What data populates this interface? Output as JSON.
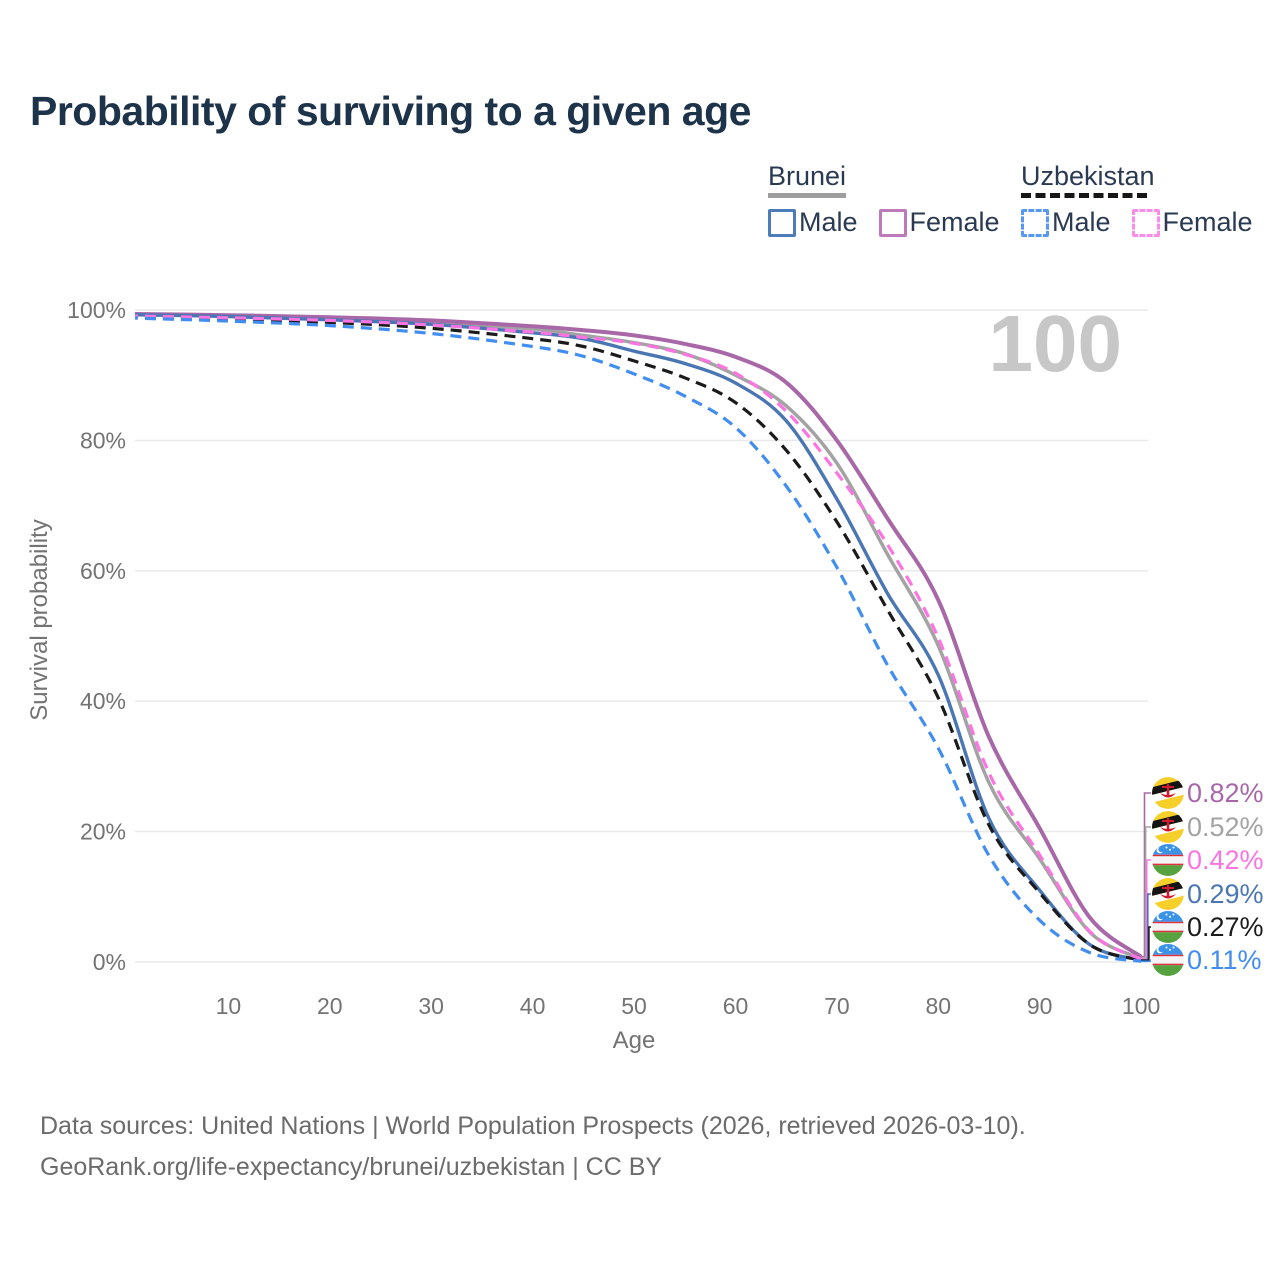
{
  "title": "Probability of surviving to a given age",
  "watermark_age": "100",
  "legend": {
    "groups": [
      {
        "name": "Brunei",
        "line_style": "solid",
        "rule_color": "#9e9e9e",
        "items": [
          {
            "label": "Male",
            "color": "#4d7cbb"
          },
          {
            "label": "Female",
            "color": "#bd7aba"
          }
        ]
      },
      {
        "name": "Uzbekistan",
        "line_style": "dashed",
        "rule_color": "#161616",
        "items": [
          {
            "label": "Male",
            "color": "#5698f4"
          },
          {
            "label": "Female",
            "color": "#fb8ce9"
          }
        ]
      }
    ]
  },
  "footer": {
    "line1": "Data sources: United Nations | World Population Prospects (2026, retrieved 2026-03-10).",
    "line2": "GeoRank.org/life-expectancy/brunei/uzbekistan | CC BY"
  },
  "colors": {
    "title": "#1d3349",
    "axis_text": "#737373",
    "gridline": "#e8e8e8",
    "watermark": "#c7c7c7",
    "flags": {
      "brunei": {
        "yellow": "#f7cf2a",
        "white": "#ffffff",
        "black": "#141414",
        "red": "#cf1b2b"
      },
      "uzbekistan": {
        "blue": "#3b93e8",
        "white": "#f4f4f4",
        "green": "#55a23f",
        "red": "#e0303a"
      }
    }
  },
  "chart_data": {
    "type": "line",
    "title": "Probability of surviving to a given age",
    "xlabel": "Age",
    "ylabel": "Survival probability",
    "xlim": [
      0,
      100
    ],
    "ylim_pct": [
      0,
      100
    ],
    "x_ticks": [
      10,
      20,
      30,
      40,
      50,
      60,
      70,
      80,
      90,
      100
    ],
    "y_ticks_pct": [
      0,
      20,
      40,
      60,
      80,
      100
    ],
    "grid": "horizontal",
    "ages": [
      0,
      10,
      20,
      30,
      40,
      45,
      50,
      55,
      60,
      65,
      70,
      75,
      80,
      85,
      90,
      95,
      100
    ],
    "series": [
      {
        "name": "Brunei Female",
        "country": "brunei",
        "sex": "Female",
        "style": "solid",
        "color": "#a868a8",
        "width": 4,
        "end_label": "0.82%",
        "values": [
          99.4,
          99.2,
          98.9,
          98.4,
          97.5,
          96.9,
          96.1,
          94.8,
          92.8,
          88.9,
          80.0,
          68.0,
          55.5,
          34.5,
          20.5,
          6.7,
          0.82
        ]
      },
      {
        "name": "Brunei",
        "country": "brunei",
        "sex": "All",
        "style": "solid",
        "color": "#a3a3a3",
        "width": 3.5,
        "end_label": "0.52%",
        "values": [
          99.3,
          99.1,
          98.7,
          98.1,
          97.1,
          96.1,
          95.0,
          93.3,
          90.0,
          85.3,
          76.5,
          62.5,
          48.5,
          27.5,
          15.8,
          4.5,
          0.52
        ]
      },
      {
        "name": "Brunei Male",
        "country": "brunei",
        "sex": "Male",
        "style": "solid",
        "color": "#4a77b4",
        "width": 3.4,
        "end_label": "0.29%",
        "values": [
          99.3,
          99.0,
          98.5,
          97.8,
          96.5,
          95.6,
          93.7,
          91.8,
          88.8,
          83.0,
          71.0,
          56.5,
          44.0,
          22.0,
          11.0,
          2.6,
          0.29
        ]
      },
      {
        "name": "Uzbekistan Female",
        "country": "uzbekistan",
        "sex": "Female",
        "style": "dashed",
        "color": "#fb74e1",
        "width": 3.2,
        "end_label": "0.42%",
        "values": [
          99.1,
          98.8,
          98.4,
          97.7,
          96.6,
          95.8,
          94.9,
          93.2,
          90.3,
          84.5,
          75.0,
          64.0,
          49.7,
          29.0,
          16.4,
          4.6,
          0.42
        ]
      },
      {
        "name": "Uzbekistan",
        "country": "uzbekistan",
        "sex": "All",
        "style": "dashed",
        "color": "#1b1b1b",
        "width": 3.2,
        "end_label": "0.27%",
        "values": [
          99.0,
          98.6,
          98.1,
          97.2,
          95.6,
          94.4,
          92.2,
          89.6,
          85.8,
          78.5,
          67.5,
          54.0,
          40.5,
          21.0,
          10.6,
          2.6,
          0.27
        ]
      },
      {
        "name": "Uzbekistan Male",
        "country": "uzbekistan",
        "sex": "Male",
        "style": "dashed",
        "color": "#418df0",
        "width": 3.2,
        "end_label": "0.11%",
        "values": [
          98.8,
          98.3,
          97.6,
          96.4,
          94.4,
          92.9,
          90.2,
          86.8,
          82.0,
          73.0,
          60.5,
          45.5,
          32.8,
          16.3,
          6.4,
          1.4,
          0.11
        ]
      }
    ],
    "end_label_order": [
      0,
      1,
      3,
      2,
      4,
      5
    ],
    "legend_position": "top-right"
  }
}
